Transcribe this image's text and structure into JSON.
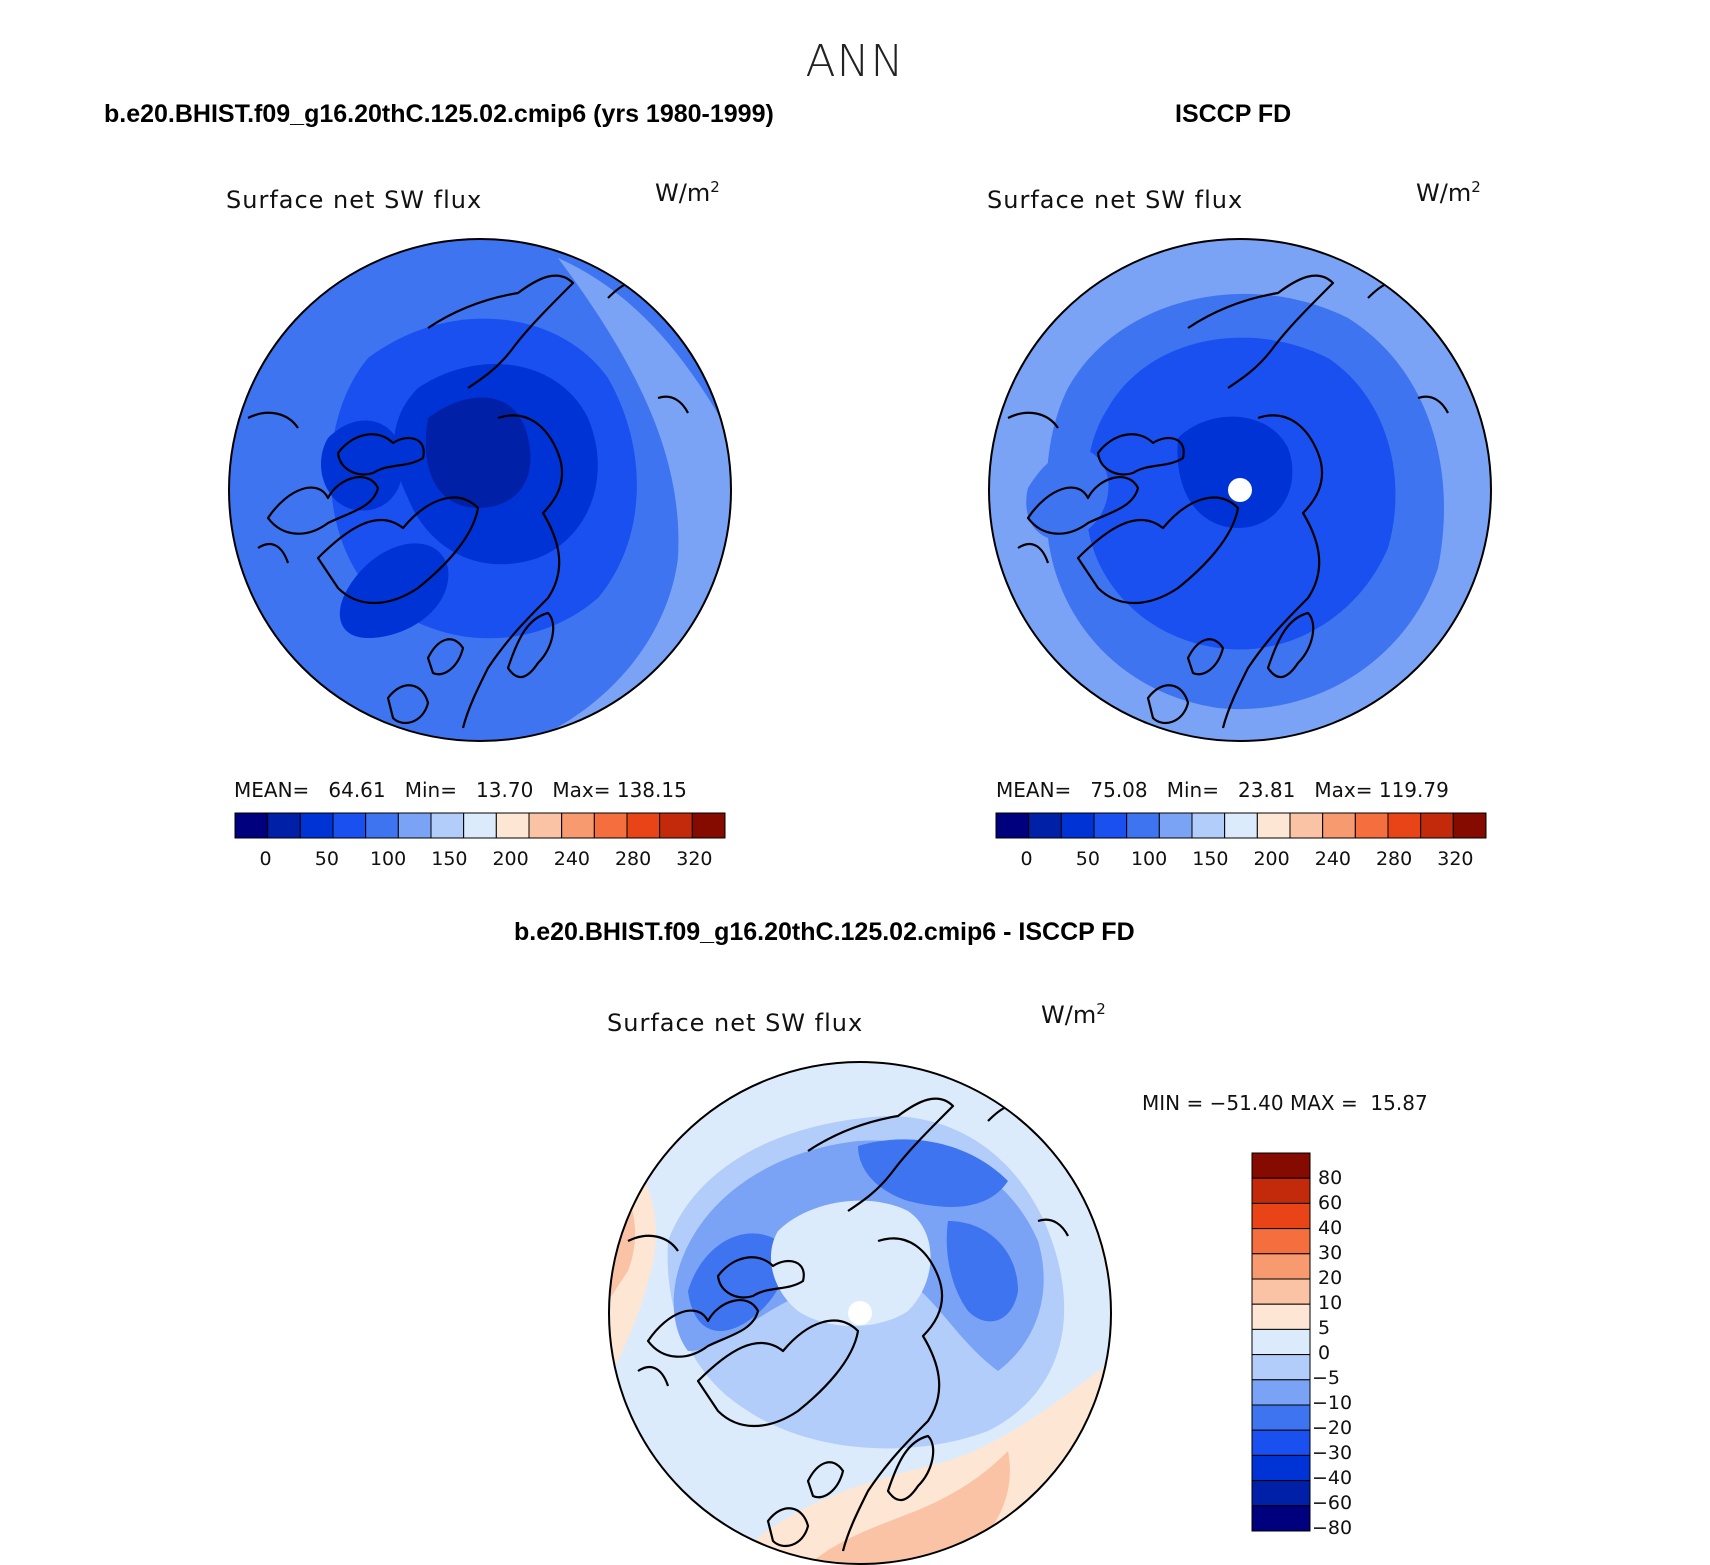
{
  "figure": {
    "title": "ANN"
  },
  "panels": [
    {
      "id": "model",
      "heading": "b.e20.BHIST.f09_g16.20thC.125.02.cmip6 (yrs 1980-1999)",
      "variable": "Surface net SW flux",
      "units_base": "W/m",
      "units_exp": "2",
      "stats": {
        "mean_label": "MEAN=",
        "mean": "64.61",
        "min_label": "Min=",
        "min": "13.70",
        "max_label": "Max=",
        "max": "138.15"
      },
      "colorbar": {
        "colors": [
          "#00007f",
          "#0020a8",
          "#0033d6",
          "#1a4ff0",
          "#3f74f0",
          "#7aa3f5",
          "#b3cdfa",
          "#dcebfb",
          "#fde6d4",
          "#fbc3a5",
          "#f89a70",
          "#f46e3e",
          "#e84418",
          "#c22a0b",
          "#850a00"
        ],
        "tick_labels": [
          "0",
          "50",
          "100",
          "150",
          "200",
          "240",
          "280",
          "320"
        ]
      },
      "map_colors": [
        "#3f74f0",
        "#1a4ff0",
        "#0033d6",
        "#0020a8",
        "#7aa3f5"
      ]
    },
    {
      "id": "obs",
      "heading": "ISCCP FD",
      "variable": "Surface net SW flux",
      "units_base": "W/m",
      "units_exp": "2",
      "stats": {
        "mean_label": "MEAN=",
        "mean": "75.08",
        "min_label": "Min=",
        "min": "23.81",
        "max_label": "Max=",
        "max": "119.79"
      },
      "colorbar": {
        "colors": [
          "#00007f",
          "#0020a8",
          "#0033d6",
          "#1a4ff0",
          "#3f74f0",
          "#7aa3f5",
          "#b3cdfa",
          "#dcebfb",
          "#fde6d4",
          "#fbc3a5",
          "#f89a70",
          "#f46e3e",
          "#e84418",
          "#c22a0b",
          "#850a00"
        ],
        "tick_labels": [
          "0",
          "50",
          "100",
          "150",
          "200",
          "240",
          "280",
          "320"
        ]
      },
      "map_colors": [
        "#7aa3f5",
        "#3f74f0",
        "#1a4ff0",
        "#0033d6"
      ]
    },
    {
      "id": "diff",
      "heading": "b.e20.BHIST.f09_g16.20thC.125.02.cmip6 - ISCCP FD",
      "variable": "Surface net SW flux",
      "units_base": "W/m",
      "units_exp": "2",
      "stats_line": "MIN = −51.40 MAX =  15.87",
      "colorbar": {
        "colors": [
          "#850a00",
          "#c22a0b",
          "#e84418",
          "#f46e3e",
          "#f89a70",
          "#fbc3a5",
          "#fde6d4",
          "#dcebfb",
          "#b3cdfa",
          "#7aa3f5",
          "#3f74f0",
          "#1a4ff0",
          "#0033d6",
          "#0020a8",
          "#00007f"
        ],
        "tick_labels": [
          "80",
          "60",
          "40",
          "30",
          "20",
          "10",
          "5",
          "0",
          "−5",
          "−10",
          "−20",
          "−30",
          "−40",
          "−60",
          "−80"
        ]
      },
      "map_colors": [
        "#dcebfb",
        "#b3cdfa",
        "#7aa3f5",
        "#3f74f0",
        "#fde6d4",
        "#fbc3a5"
      ]
    }
  ]
}
